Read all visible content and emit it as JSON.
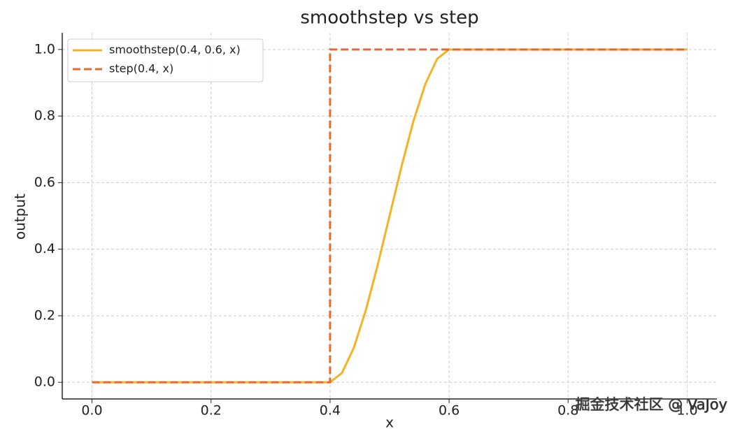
{
  "chart_data": {
    "type": "line",
    "title": "smoothstep vs step",
    "xlabel": "x",
    "ylabel": "output",
    "xlim": [
      -0.05,
      1.05
    ],
    "ylim": [
      -0.05,
      1.05
    ],
    "xticks": [
      {
        "value": 0,
        "label": "0.0"
      },
      0.2,
      0.4,
      0.6,
      0.8,
      {
        "value": 1,
        "label": "1.0"
      }
    ],
    "yticks": [
      {
        "value": 0,
        "label": "0.0"
      },
      0.2,
      0.4,
      0.6,
      0.8,
      {
        "value": 1,
        "label": "1.0"
      }
    ],
    "grid": true,
    "legend": "upper left",
    "series": [
      {
        "name": "smoothstep(0.4, 0.6, x)",
        "color": "#f5b324",
        "style": "solid",
        "x": [
          0,
          0.4,
          0.42,
          0.44,
          0.46,
          0.48,
          0.5,
          0.52,
          0.54,
          0.56,
          0.58,
          0.6,
          1
        ],
        "values": [
          0,
          0,
          0.028,
          0.104,
          0.216,
          0.352,
          0.5,
          0.648,
          0.784,
          0.896,
          0.972,
          1,
          1
        ]
      },
      {
        "name": "step(0.4, x)",
        "color": "#e8692f",
        "style": "dashed",
        "x": [
          0,
          0.4,
          0.4,
          1
        ],
        "values": [
          0,
          0,
          1,
          1
        ]
      }
    ],
    "annotations": [
      "掘金技术社区 @ VaJoy"
    ]
  }
}
